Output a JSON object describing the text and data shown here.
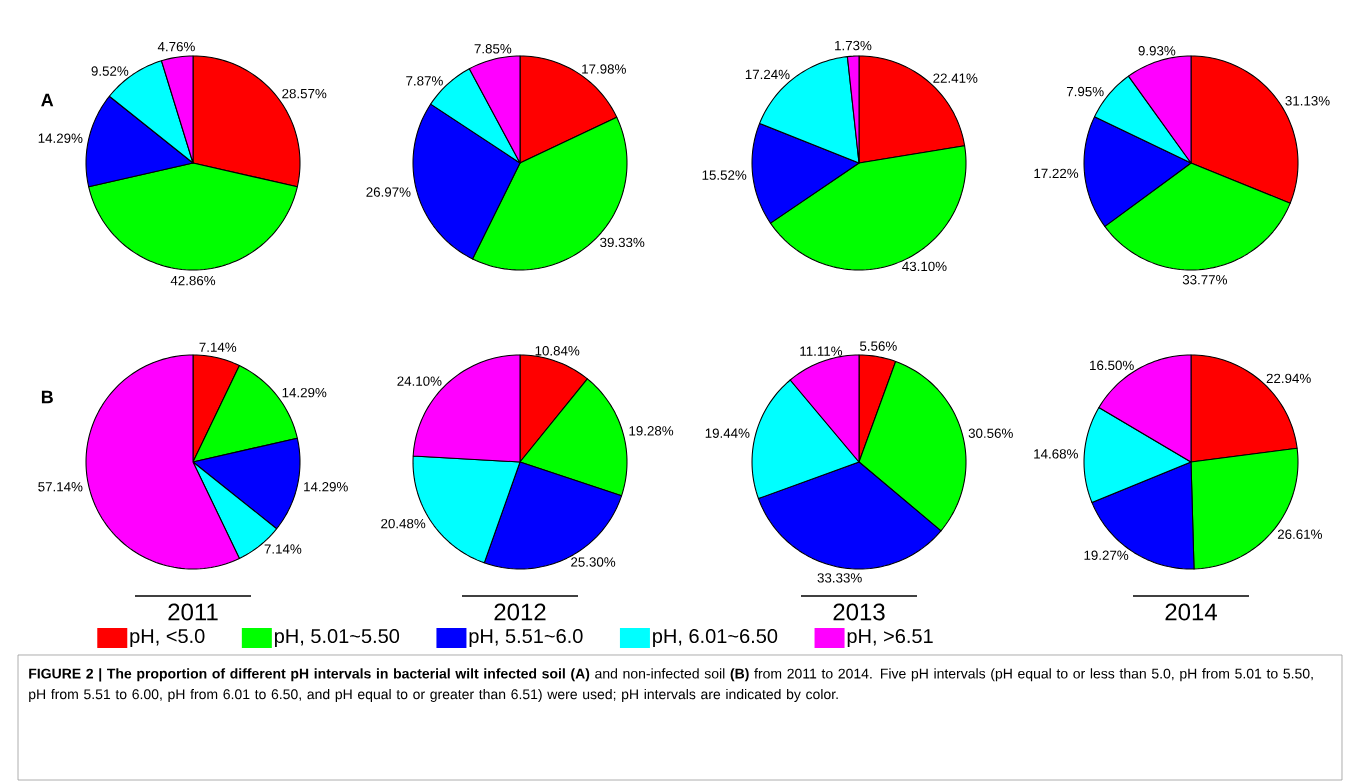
{
  "chart_data": [
    {
      "type": "pie",
      "title": "A",
      "categories": [
        null,
        null,
        null,
        null,
        null
      ],
      "values": [
        28.57,
        42.86,
        14.29,
        9.52,
        4.76
      ],
      "value_labels": [
        "28.57%",
        "42.86%",
        "14.29%",
        "9.52%",
        "4.76%"
      ],
      "colors": [
        "#ff0000",
        "#00ff00",
        "#0000ff",
        "#00ffff",
        "#ff00ff"
      ]
    },
    {
      "type": "pie",
      "categories": [
        null,
        null,
        null,
        null,
        null
      ],
      "values": [
        17.98,
        39.33,
        26.97,
        7.87,
        7.85
      ],
      "value_labels": [
        "17.98%",
        "39.33%",
        "26.97%",
        "7.87%",
        "7.85%"
      ],
      "colors": [
        "#ff0000",
        "#00ff00",
        "#0000ff",
        "#00ffff",
        "#ff00ff"
      ]
    },
    {
      "type": "pie",
      "categories": [
        null,
        null,
        null,
        null,
        null
      ],
      "values": [
        22.41,
        43.1,
        15.52,
        17.24,
        1.73
      ],
      "value_labels": [
        "22.41%",
        "43.10%",
        "15.52%",
        "17.24%",
        "1.73%"
      ],
      "colors": [
        "#ff0000",
        "#00ff00",
        "#0000ff",
        "#00ffff",
        "#ff00ff"
      ]
    },
    {
      "type": "pie",
      "categories": [
        null,
        null,
        null,
        null,
        null
      ],
      "values": [
        31.13,
        33.77,
        17.22,
        7.95,
        9.93
      ],
      "value_labels": [
        "31.13%",
        "33.77%",
        "17.22%",
        "7.95%",
        "9.93%"
      ],
      "colors": [
        "#ff0000",
        "#00ff00",
        "#0000ff",
        "#00ffff",
        "#ff00ff"
      ]
    },
    {
      "type": "pie",
      "title": "B",
      "xlabel": "2011",
      "categories": [
        null,
        null,
        null,
        null,
        null
      ],
      "values": [
        7.14,
        14.29,
        14.29,
        7.14,
        57.14
      ],
      "value_labels": [
        "7.14%",
        "14.29%",
        "14.29%",
        "7.14%",
        "57.14%"
      ],
      "colors": [
        "#ff0000",
        "#00ff00",
        "#0000ff",
        "#00ffff",
        "#ff00ff"
      ]
    },
    {
      "type": "pie",
      "xlabel": "2012",
      "categories": [
        null,
        null,
        null,
        null,
        null
      ],
      "values": [
        10.84,
        19.28,
        25.3,
        20.48,
        24.1
      ],
      "value_labels": [
        "10.84%",
        "19.28%",
        "25.30%",
        "20.48%",
        "24.10%"
      ],
      "colors": [
        "#ff0000",
        "#00ff00",
        "#0000ff",
        "#00ffff",
        "#ff00ff"
      ]
    },
    {
      "type": "pie",
      "xlabel": "2013",
      "categories": [
        null,
        null,
        null,
        null,
        null
      ],
      "values": [
        5.56,
        30.56,
        33.33,
        19.44,
        11.11
      ],
      "value_labels": [
        "5.56%",
        "30.56%",
        "33.33%",
        "19.44%",
        "11.11%"
      ],
      "colors": [
        "#ff0000",
        "#00ff00",
        "#0000ff",
        "#00ffff",
        "#ff00ff"
      ]
    },
    {
      "type": "pie",
      "xlabel": "2014",
      "legend": "bottom",
      "categories": [
        "pH, <5.0",
        "pH, 5.01~5.50",
        "pH, 5.51~6.0",
        "pH, 6.01~6.50",
        "pH, >6.51"
      ],
      "values": [
        22.94,
        26.61,
        19.27,
        14.68,
        16.5
      ],
      "value_labels": [
        "22.94%",
        "26.61%",
        "19.27%",
        "14.68%",
        "16.50%"
      ],
      "colors": [
        "#ff0000",
        "#00ff00",
        "#0000ff",
        "#00ffff",
        "#ff00ff"
      ],
      "annotations": [
        "**FIGURE 2 | The proportion of different pH intervals in bacterial wilt infected soil (A)** and non-infected soil **(B)** from 2011 to 2014. Five pH intervals (pH equal to or less than 5.0, pH from 5.01 to 5.50, pH from 5.51 to 6.00, pH from 6.01 to 6.50, and pH equal to or greater than 6.51) were used; pH intervals are indicated by color."
      ]
    }
  ]
}
